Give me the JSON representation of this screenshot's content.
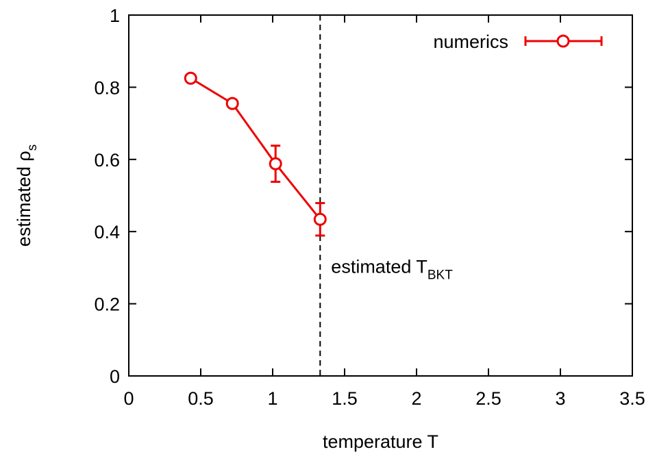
{
  "chart_data": {
    "type": "line",
    "xlabel": "temperature T",
    "ylabel_main": "estimated ρ",
    "ylabel_sub": "s",
    "xlim": [
      0,
      3.5
    ],
    "ylim": [
      0,
      1
    ],
    "xticks": [
      0,
      0.5,
      1,
      1.5,
      2,
      2.5,
      3,
      3.5
    ],
    "xtick_labels": [
      "0",
      "0.5",
      "1",
      "1.5",
      "2",
      "2.5",
      "3",
      "3.5"
    ],
    "yticks": [
      0,
      0.2,
      0.4,
      0.6,
      0.8,
      1
    ],
    "ytick_labels": [
      "0",
      "0.2",
      "0.4",
      "0.6",
      "0.8",
      "1"
    ],
    "grid": false,
    "legend_position": "top-right",
    "series": [
      {
        "name": "numerics",
        "color": "#ee0000",
        "marker": "open-circle",
        "points": [
          {
            "x": 0.43,
            "y": 0.825,
            "err": 0.005
          },
          {
            "x": 0.72,
            "y": 0.755,
            "err": 0.01
          },
          {
            "x": 1.02,
            "y": 0.588,
            "err": 0.05
          },
          {
            "x": 1.33,
            "y": 0.434,
            "err": 0.045
          }
        ]
      }
    ],
    "vline": {
      "x": 1.33,
      "style": "dashed",
      "label_main": "estimated T",
      "label_sub": "BKT"
    }
  }
}
